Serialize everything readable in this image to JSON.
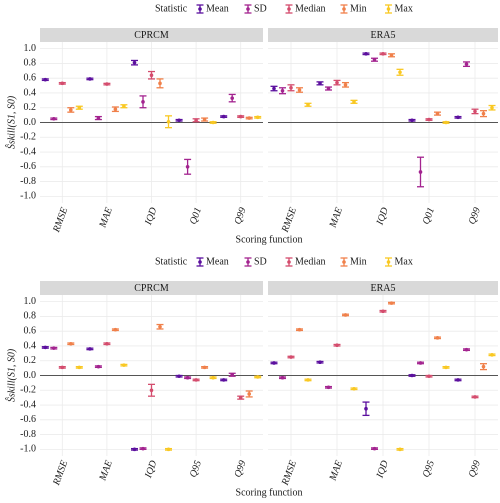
{
  "chart_data": [
    {
      "type": "errorbar",
      "legend_title": "Statistic",
      "xlabel": "Scoring function",
      "ylabel": "Ŝskill(S1, S0)",
      "panels": [
        "CPRCM",
        "ERA5"
      ],
      "categories": [
        "RMSE",
        "MAE",
        "IQD",
        "Q01",
        "Q99"
      ],
      "ylim": [
        -1.09,
        1.09
      ],
      "yticks": [
        {
          "value": -1,
          "label": "-1.0"
        },
        -0.8,
        -0.6,
        -0.4,
        -0.2,
        {
          "value": 0,
          "label": "0.0"
        },
        0.2,
        0.4,
        0.6,
        0.8,
        {
          "value": 1,
          "label": "1.0"
        }
      ],
      "grid": true,
      "series": [
        {
          "name": "Mean",
          "color": "#5b0f9e",
          "values": [
            [
              0.58,
              0.59,
              0.81,
              0.03,
              0.08
            ],
            [
              0.46,
              0.53,
              0.93,
              0.03,
              0.07
            ]
          ],
          "errors": [
            [
              0.01,
              0.01,
              0.03,
              0.01,
              0.01
            ],
            [
              0.03,
              0.02,
              0.01,
              0.01,
              0.01
            ]
          ]
        },
        {
          "name": "SD",
          "color": "#a3238f",
          "values": [
            [
              0.05,
              0.06,
              0.28,
              -0.6,
              0.33
            ],
            [
              0.43,
              0.46,
              0.85,
              -0.67,
              0.79
            ]
          ],
          "errors": [
            [
              0.01,
              0.02,
              0.08,
              0.1,
              0.05
            ],
            [
              0.04,
              0.02,
              0.02,
              0.2,
              0.03
            ]
          ]
        },
        {
          "name": "Median",
          "color": "#d44c6d",
          "values": [
            [
              0.53,
              0.52,
              0.64,
              0.03,
              0.08
            ],
            [
              0.47,
              0.54,
              0.93,
              0.04,
              0.15
            ]
          ],
          "errors": [
            [
              0.01,
              0.01,
              0.05,
              0.02,
              0.01
            ],
            [
              0.04,
              0.03,
              0.01,
              0.01,
              0.03
            ]
          ]
        },
        {
          "name": "Min",
          "color": "#f0804a",
          "values": [
            [
              0.17,
              0.18,
              0.53,
              0.04,
              0.06
            ],
            [
              0.44,
              0.51,
              0.91,
              0.12,
              0.12
            ]
          ],
          "errors": [
            [
              0.03,
              0.03,
              0.06,
              0.02,
              0.01
            ],
            [
              0.03,
              0.03,
              0.02,
              0.02,
              0.04
            ]
          ]
        },
        {
          "name": "Max",
          "color": "#f9c822",
          "values": [
            [
              0.2,
              0.22,
              0.01,
              0.0,
              0.07
            ],
            [
              0.24,
              0.28,
              0.68,
              0.0,
              0.2
            ]
          ],
          "errors": [
            [
              0.02,
              0.02,
              0.08,
              0.01,
              0.01
            ],
            [
              0.02,
              0.02,
              0.04,
              0.01,
              0.03
            ]
          ]
        }
      ]
    },
    {
      "type": "errorbar",
      "legend_title": "Statistic",
      "xlabel": "Scoring function",
      "ylabel": "Ŝskill(S1, S0)",
      "panels": [
        "CPRCM",
        "ERA5"
      ],
      "categories": [
        "RMSE",
        "MAE",
        "IQD",
        "Q95",
        "Q99"
      ],
      "ylim": [
        -1.09,
        1.09
      ],
      "yticks": [
        {
          "value": -1,
          "label": "-1.0"
        },
        -0.8,
        -0.6,
        -0.4,
        -0.2,
        {
          "value": 0,
          "label": "0.0"
        },
        0.2,
        0.4,
        0.6,
        0.8,
        {
          "value": 1,
          "label": "1.0"
        }
      ],
      "grid": true,
      "series": [
        {
          "name": "Mean",
          "color": "#5b0f9e",
          "values": [
            [
              0.38,
              0.36,
              -1.0,
              -0.01,
              -0.06
            ],
            [
              0.17,
              0.18,
              -0.45,
              0.0,
              -0.06
            ]
          ],
          "errors": [
            [
              0.01,
              0.01,
              0.01,
              0.01,
              0.01
            ],
            [
              0.01,
              0.01,
              0.09,
              0.01,
              0.01
            ]
          ]
        },
        {
          "name": "SD",
          "color": "#a3238f",
          "values": [
            [
              0.37,
              0.12,
              -0.99,
              -0.03,
              0.01
            ],
            [
              -0.03,
              -0.16,
              -0.99,
              0.17,
              0.35
            ]
          ],
          "errors": [
            [
              0.01,
              0.01,
              0.01,
              0.01,
              0.02
            ],
            [
              0.01,
              0.01,
              0.01,
              0.01,
              0.01
            ]
          ]
        },
        {
          "name": "Median",
          "color": "#d44c6d",
          "values": [
            [
              0.11,
              0.43,
              -0.2,
              -0.06,
              -0.3
            ],
            [
              0.25,
              0.41,
              0.87,
              -0.01,
              -0.29
            ]
          ],
          "errors": [
            [
              0.01,
              0.01,
              0.08,
              0.01,
              0.02
            ],
            [
              0.01,
              0.01,
              0.01,
              0.01,
              0.01
            ]
          ]
        },
        {
          "name": "Min",
          "color": "#f0804a",
          "values": [
            [
              0.43,
              0.62,
              0.66,
              0.11,
              -0.25
            ],
            [
              0.62,
              0.82,
              0.98,
              0.51,
              0.12
            ]
          ],
          "errors": [
            [
              0.01,
              0.01,
              0.03,
              0.01,
              0.04
            ],
            [
              0.01,
              0.01,
              0.01,
              0.01,
              0.04
            ]
          ]
        },
        {
          "name": "Max",
          "color": "#f9c822",
          "values": [
            [
              0.11,
              0.14,
              -1.0,
              -0.03,
              -0.02
            ],
            [
              -0.06,
              -0.18,
              -1.0,
              0.11,
              0.28
            ]
          ],
          "errors": [
            [
              0.01,
              0.01,
              0.01,
              0.01,
              0.01
            ],
            [
              0.01,
              0.01,
              0.01,
              0.01,
              0.01
            ]
          ]
        }
      ]
    }
  ]
}
